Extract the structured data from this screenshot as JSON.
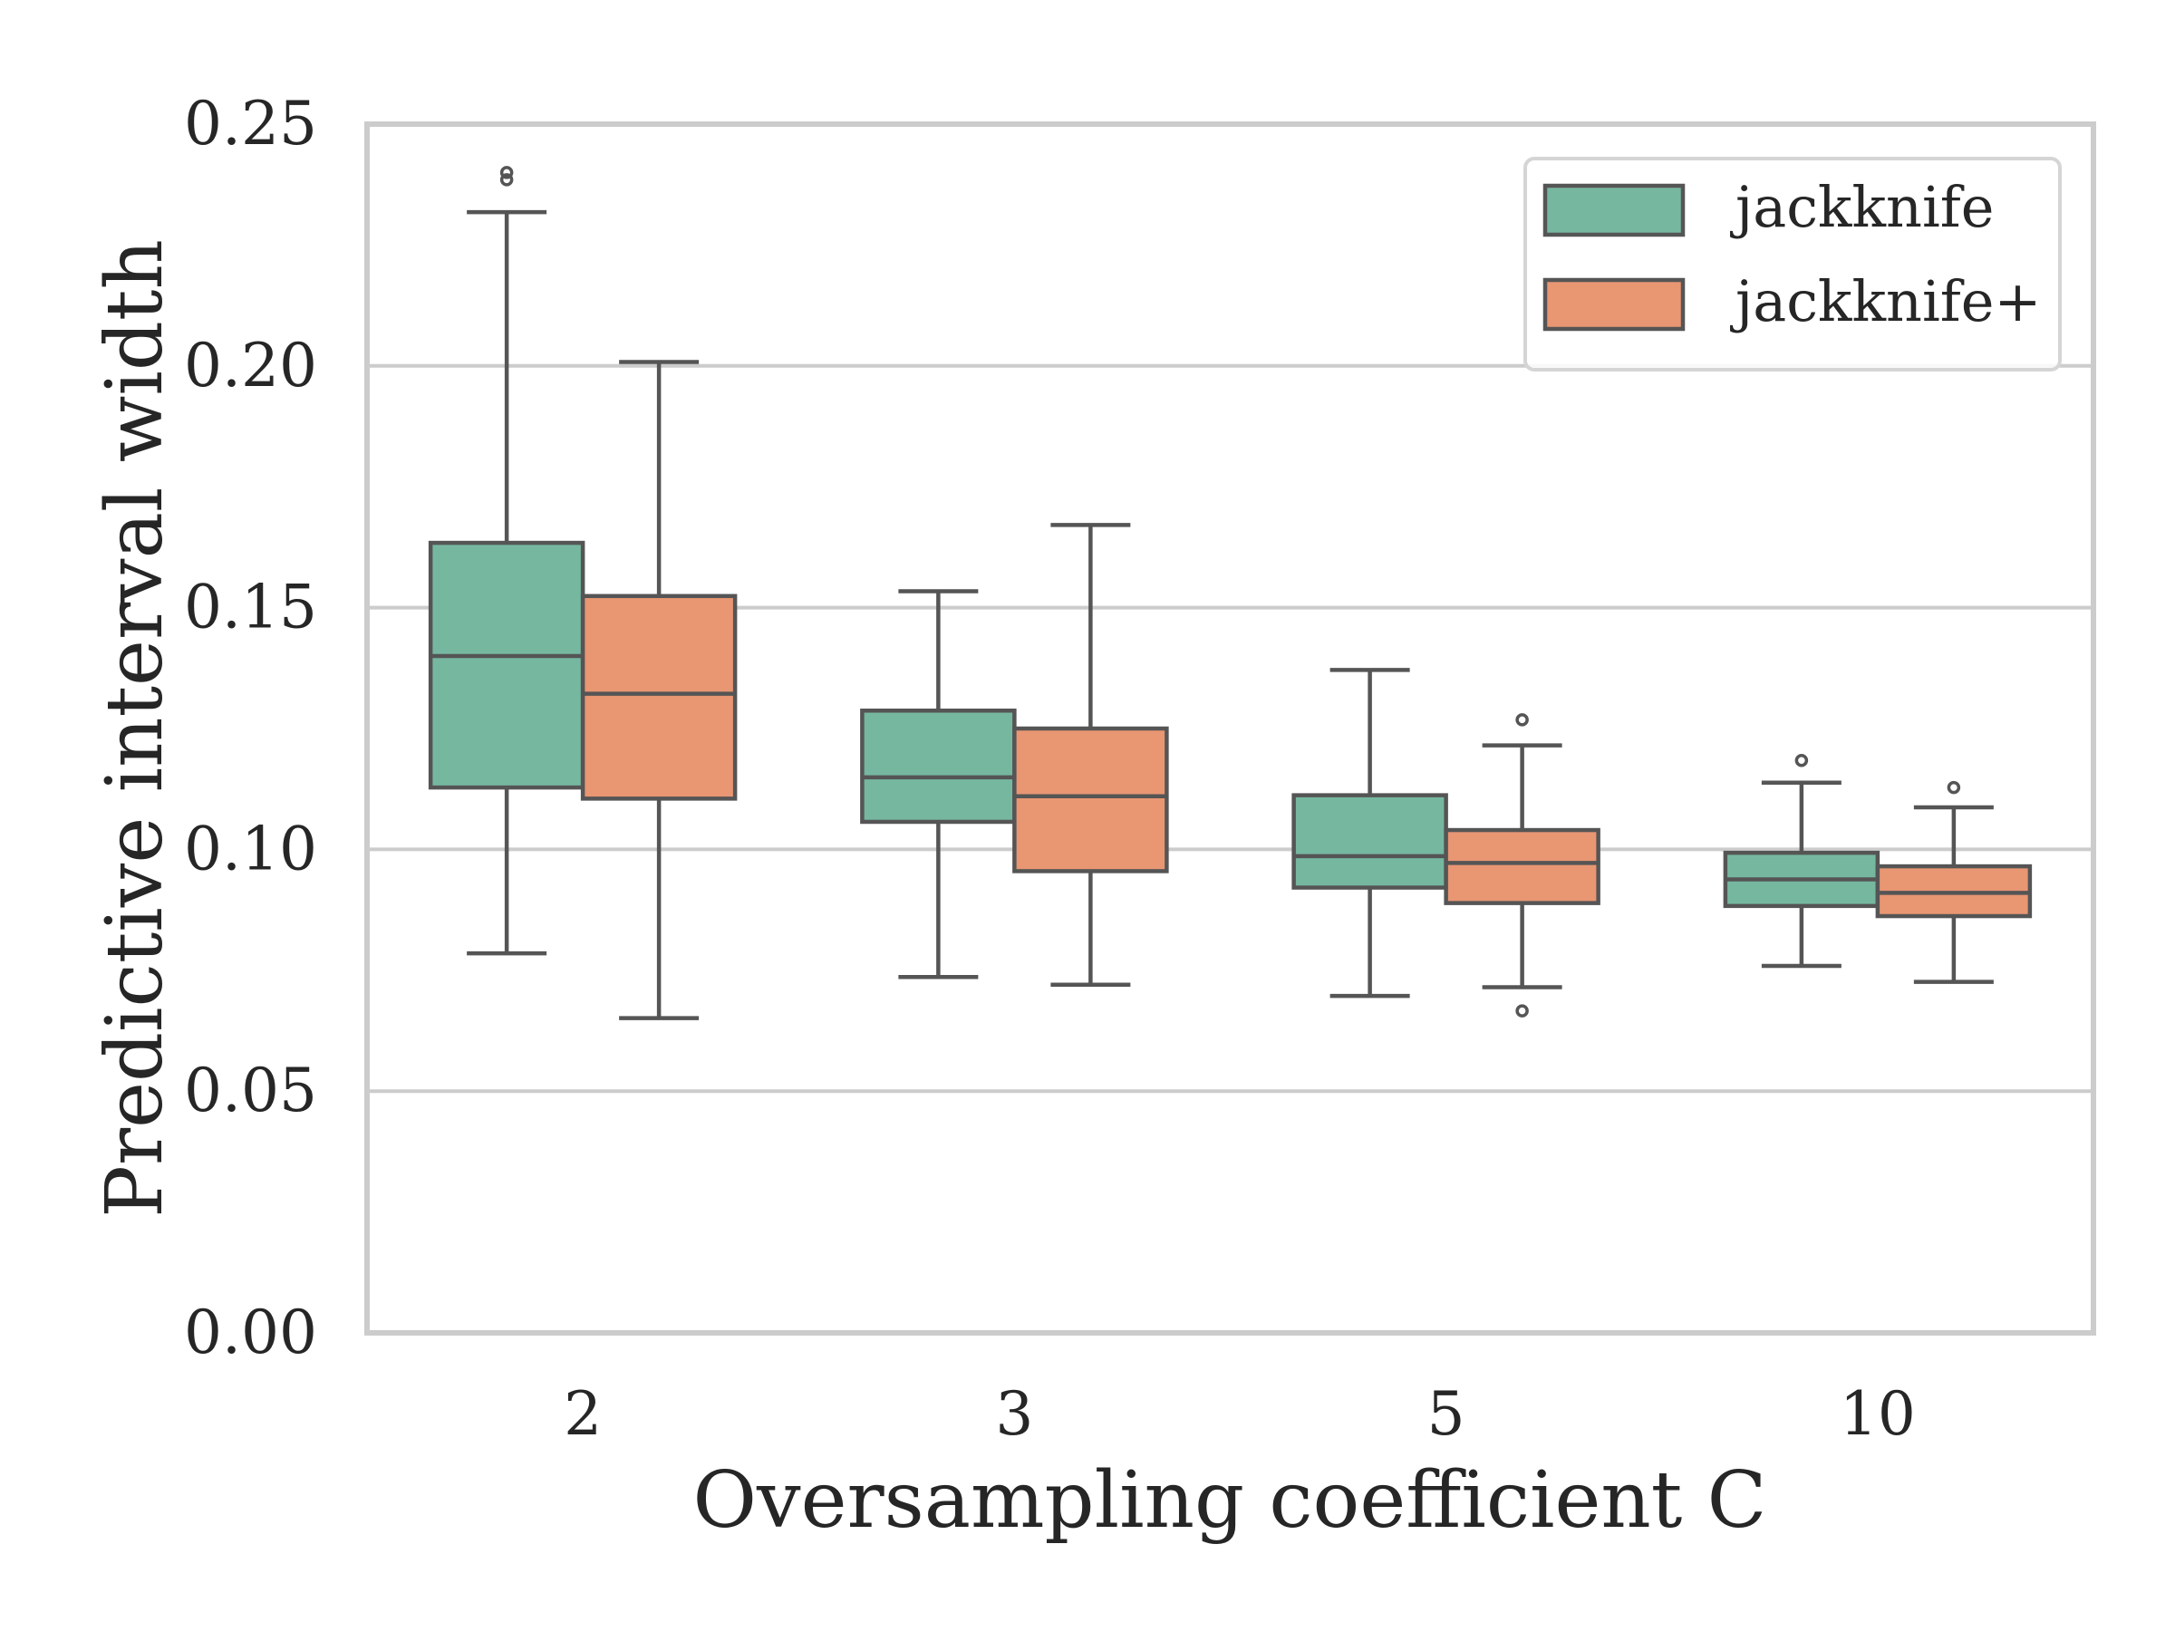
{
  "chart_data": {
    "type": "box",
    "title": "",
    "xlabel": "Oversampling coefficient C",
    "ylabel": "Predictive interval width",
    "categories": [
      "2",
      "3",
      "5",
      "10"
    ],
    "ylim": [
      0.0,
      0.25
    ],
    "yticks": [
      "0.00",
      "0.05",
      "0.10",
      "0.15",
      "0.20",
      "0.25"
    ],
    "ytick_values": [
      0.0,
      0.05,
      0.1,
      0.15,
      0.2,
      0.25
    ],
    "grid": "horizontal",
    "legend": {
      "position": "top-right"
    },
    "series": [
      {
        "name": "jackknife",
        "color": "#76b7a0",
        "boxes": [
          {
            "whislo": 0.0785,
            "q1": 0.1128,
            "median": 0.14,
            "q3": 0.1634,
            "whishi": 0.2318,
            "fliers": [
              0.2385,
              0.24
            ]
          },
          {
            "whislo": 0.0736,
            "q1": 0.1057,
            "median": 0.1149,
            "q3": 0.1287,
            "whishi": 0.1534,
            "fliers": []
          },
          {
            "whislo": 0.0697,
            "q1": 0.0921,
            "median": 0.0986,
            "q3": 0.1112,
            "whishi": 0.1371,
            "fliers": []
          },
          {
            "whislo": 0.0759,
            "q1": 0.0883,
            "median": 0.0938,
            "q3": 0.0993,
            "whishi": 0.1138,
            "fliers": [
              0.1184
            ]
          }
        ]
      },
      {
        "name": "jackknife+",
        "color": "#e99673",
        "boxes": [
          {
            "whislo": 0.0651,
            "q1": 0.1105,
            "median": 0.1322,
            "q3": 0.1524,
            "whishi": 0.2008,
            "fliers": []
          },
          {
            "whislo": 0.072,
            "q1": 0.0955,
            "median": 0.111,
            "q3": 0.125,
            "whishi": 0.1671,
            "fliers": []
          },
          {
            "whislo": 0.0715,
            "q1": 0.0889,
            "median": 0.0972,
            "q3": 0.104,
            "whishi": 0.1215,
            "fliers": [
              0.1268,
              0.0666
            ]
          },
          {
            "whislo": 0.0726,
            "q1": 0.0862,
            "median": 0.091,
            "q3": 0.0965,
            "whishi": 0.1087,
            "fliers": [
              0.1128
            ]
          }
        ]
      }
    ]
  }
}
